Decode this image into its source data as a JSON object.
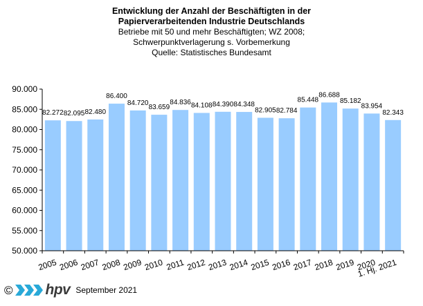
{
  "header": {
    "title_line1": "Entwicklung der Anzahl der Beschäftigten in der",
    "title_line2": "Papierverarbeitenden Industrie Deutschlands",
    "subtitle_line1": "Betriebe mit 50 und mehr Beschäftigten; WZ 2008;",
    "subtitle_line2": "Schwerpunktverlagerung s. Vorbemerkung",
    "subtitle_line3": "Quelle: Statistisches Bundesamt"
  },
  "footer": {
    "copyright": "©",
    "logo_text": "hpv",
    "date": "September 2021"
  },
  "colors": {
    "bar": "#99ccff",
    "logo_chevron": "#29a9d8"
  },
  "chart_data": {
    "type": "bar",
    "categories": [
      "2005",
      "2006",
      "2007",
      "2008",
      "2009",
      "2010",
      "2011",
      "2012",
      "2013",
      "2014",
      "2015",
      "2016",
      "2017",
      "2018",
      "2019",
      "2020",
      "1. Hj. 2021"
    ],
    "values": [
      82272,
      82095,
      82480,
      86400,
      84720,
      83659,
      84836,
      84108,
      84390,
      84348,
      82905,
      82784,
      85448,
      86688,
      85182,
      83954,
      82343
    ],
    "value_labels": [
      "82.272",
      "82.095",
      "82.480",
      "86.400",
      "84.720",
      "83.659",
      "84.836",
      "84.108",
      "84.390",
      "84.348",
      "82.905",
      "82.784",
      "85.448",
      "86.688",
      "85.182",
      "83.954",
      "82.343"
    ],
    "ylim": [
      50000,
      90000
    ],
    "yticks": [
      50000,
      55000,
      60000,
      65000,
      70000,
      75000,
      80000,
      85000,
      90000
    ],
    "ytick_labels": [
      "50.000",
      "55.000",
      "60.000",
      "65.000",
      "70.000",
      "75.000",
      "80.000",
      "85.000",
      "90.000"
    ],
    "grid": false,
    "legend": "none"
  }
}
